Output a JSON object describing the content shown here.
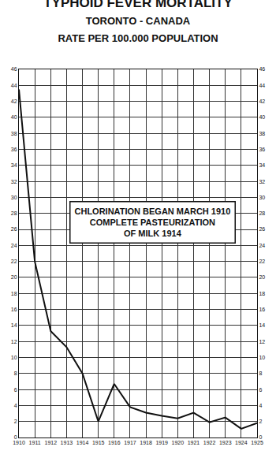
{
  "chart_data": {
    "type": "line",
    "title": "TYPHOID FEVER MORTALITY",
    "subtitle": "TORONTO - CANADA",
    "ylabel": "RATE PER 100.000 POPULATION",
    "annotation": [
      "CHLORINATION BEGAN MARCH 1910",
      "COMPLETE PASTEURIZATION",
      "OF MILK 1914"
    ],
    "x": [
      1910,
      1911,
      1912,
      1913,
      1914,
      1915,
      1916,
      1917,
      1918,
      1919,
      1920,
      1921,
      1922,
      1923,
      1924,
      1925
    ],
    "values": [
      43.5,
      22,
      13.3,
      11.3,
      8,
      2,
      6.7,
      3.8,
      3.1,
      2.7,
      2.4,
      3.1,
      1.9,
      2.5,
      1.1,
      1.8
    ],
    "color": "#111111",
    "xlim": [
      1910,
      1925
    ],
    "xticks": [
      1910,
      1911,
      1912,
      1913,
      1914,
      1915,
      1916,
      1917,
      1918,
      1919,
      1920,
      1921,
      1922,
      1923,
      1924,
      1925
    ],
    "ylim": [
      0,
      46
    ],
    "yticks": [
      0,
      2,
      4,
      6,
      8,
      10,
      12,
      14,
      16,
      18,
      20,
      22,
      24,
      26,
      28,
      30,
      32,
      34,
      36,
      38,
      40,
      42,
      44,
      46
    ],
    "y2lim": [
      0,
      46
    ],
    "y2ticks": [
      0,
      2,
      4,
      6,
      8,
      10,
      12,
      14,
      16,
      18,
      20,
      22,
      24,
      26,
      28,
      30,
      32,
      34,
      36,
      38,
      40,
      42,
      44,
      46
    ],
    "grid": true
  }
}
